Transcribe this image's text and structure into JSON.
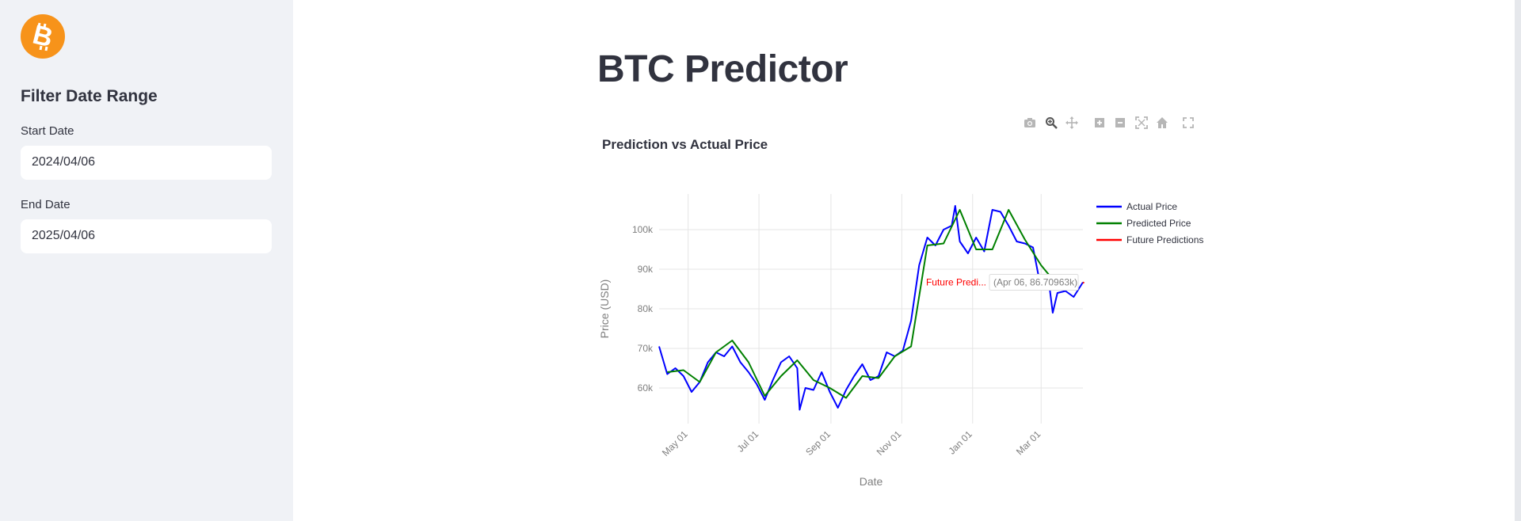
{
  "sidebar": {
    "logo_icon": "bitcoin-icon",
    "heading": "Filter Date Range",
    "start_label": "Start Date",
    "start_value": "2024/04/06",
    "end_label": "End Date",
    "end_value": "2025/04/06"
  },
  "main": {
    "title": "BTC Predictor"
  },
  "modebar": {
    "icons": [
      "camera-icon",
      "zoom-icon",
      "pan-icon",
      "zoom-in-icon",
      "zoom-out-icon",
      "autoscale-icon",
      "home-icon",
      "fullscreen-icon"
    ]
  },
  "chart_data": {
    "type": "line",
    "title": "Prediction vs Actual Price",
    "xlabel": "Date",
    "ylabel": "Price (USD)",
    "x_ticks": [
      "May 01",
      "Jul 01",
      "Sep 01",
      "Nov 01",
      "Jan 01",
      "Mar 01"
    ],
    "y_ticks": [
      "60k",
      "70k",
      "80k",
      "90k",
      "100k"
    ],
    "ylim": [
      51000,
      109000
    ],
    "xlim": [
      "2024-04-06",
      "2025-04-06"
    ],
    "grid": true,
    "legend_position": "right",
    "colors": {
      "actual": "#0000ff",
      "predicted": "#008000",
      "future": "#ff0000"
    },
    "series": [
      {
        "name": "Actual Price",
        "x": [
          "2024-04-06",
          "2024-04-13",
          "2024-04-20",
          "2024-04-27",
          "2024-05-04",
          "2024-05-11",
          "2024-05-18",
          "2024-05-25",
          "2024-06-01",
          "2024-06-08",
          "2024-06-15",
          "2024-06-22",
          "2024-06-29",
          "2024-07-06",
          "2024-07-13",
          "2024-07-20",
          "2024-07-27",
          "2024-08-03",
          "2024-08-05",
          "2024-08-10",
          "2024-08-17",
          "2024-08-24",
          "2024-08-31",
          "2024-09-07",
          "2024-09-14",
          "2024-09-21",
          "2024-09-28",
          "2024-10-05",
          "2024-10-12",
          "2024-10-19",
          "2024-10-26",
          "2024-11-02",
          "2024-11-09",
          "2024-11-16",
          "2024-11-23",
          "2024-11-30",
          "2024-12-07",
          "2024-12-14",
          "2024-12-17",
          "2024-12-21",
          "2024-12-28",
          "2025-01-04",
          "2025-01-11",
          "2025-01-18",
          "2025-01-25",
          "2025-02-01",
          "2025-02-08",
          "2025-02-15",
          "2025-02-22",
          "2025-03-01",
          "2025-03-08",
          "2025-03-11",
          "2025-03-15",
          "2025-03-22",
          "2025-03-29",
          "2025-04-06"
        ],
        "values": [
          70500,
          63500,
          65000,
          63000,
          59000,
          61500,
          66500,
          69000,
          68000,
          70500,
          66500,
          64000,
          61000,
          57000,
          62000,
          66500,
          68000,
          65000,
          54500,
          60000,
          59500,
          64000,
          59000,
          55000,
          59500,
          63000,
          66000,
          62000,
          63000,
          69000,
          68000,
          69500,
          77000,
          91000,
          98000,
          96000,
          100000,
          101000,
          106000,
          97000,
          94000,
          98000,
          94500,
          105000,
          104500,
          101000,
          97000,
          96500,
          95500,
          85000,
          86000,
          79000,
          84000,
          84500,
          83000,
          86700
        ]
      },
      {
        "name": "Predicted Price",
        "x": [
          "2024-04-13",
          "2024-04-27",
          "2024-05-11",
          "2024-05-25",
          "2024-06-08",
          "2024-06-22",
          "2024-07-06",
          "2024-07-20",
          "2024-08-03",
          "2024-08-17",
          "2024-08-31",
          "2024-09-14",
          "2024-09-28",
          "2024-10-12",
          "2024-10-26",
          "2024-11-09",
          "2024-11-23",
          "2024-12-07",
          "2024-12-21",
          "2025-01-04",
          "2025-01-18",
          "2025-02-01",
          "2025-02-15",
          "2025-03-01",
          "2025-03-15"
        ],
        "values": [
          64000,
          64500,
          61500,
          69000,
          72000,
          66500,
          58000,
          63000,
          67000,
          62000,
          60000,
          57500,
          63000,
          62500,
          68000,
          70500,
          96000,
          96500,
          105000,
          95000,
          95000,
          105000,
          97500,
          91000,
          86000
        ]
      },
      {
        "name": "Future Predictions",
        "x": [
          "2025-04-06",
          "2025-04-07"
        ],
        "values": [
          86709.63,
          86500
        ]
      }
    ],
    "annotations": [
      {
        "text": "Future Predi...",
        "color": "#ff0000"
      },
      {
        "text": "(Apr 06, 86.70963k)"
      }
    ]
  }
}
